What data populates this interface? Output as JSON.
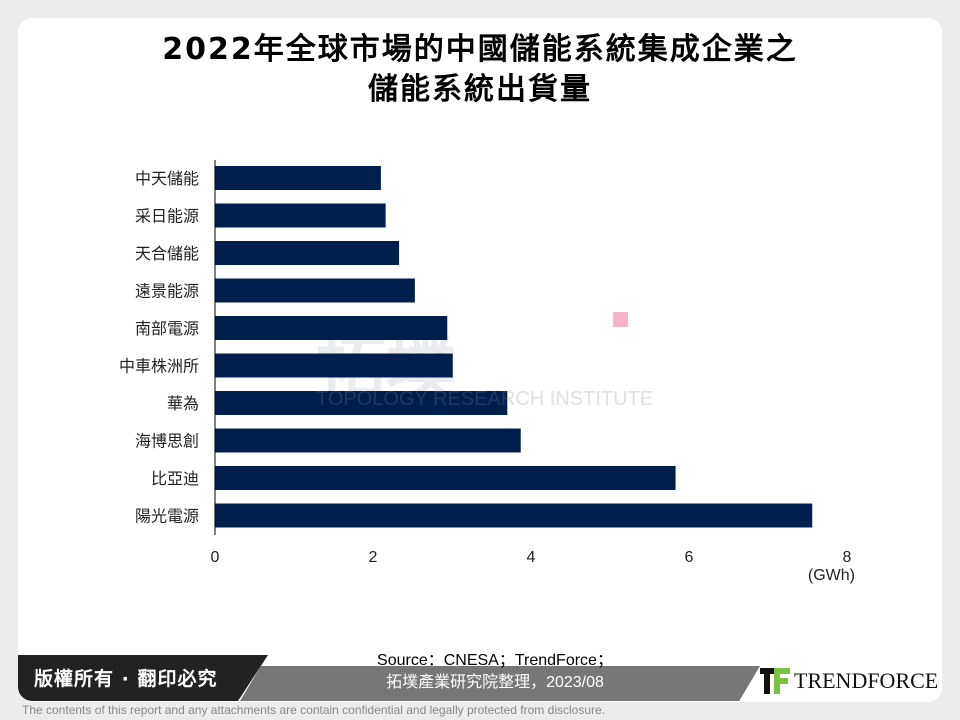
{
  "chart_data": {
    "type": "bar",
    "orientation": "horizontal",
    "title": "2022年全球市場的中國儲能系統集成企業之儲能系統出貨量",
    "title_lines": [
      "2022年全球市場的中國儲能系統集成企業之",
      "儲能系統出貨量"
    ],
    "categories": [
      "中天儲能",
      "采日能源",
      "天合儲能",
      "遠景能源",
      "南部電源",
      "中車株洲所",
      "華為",
      "海博思創",
      "比亞迪",
      "陽光電源"
    ],
    "values": [
      2.1,
      2.16,
      2.33,
      2.53,
      2.94,
      3.01,
      3.7,
      3.87,
      5.83,
      7.56
    ],
    "xlim": [
      0,
      8
    ],
    "xticks": [
      "0",
      "2",
      "4",
      "6",
      "8"
    ],
    "xunit": "(GWh)",
    "bar_color": "#001f4d",
    "grid": false
  },
  "watermark": {
    "cn": "拓墣",
    "en": "TOPOLOGY RESEARCH INSTITUTE"
  },
  "footer": {
    "copyright": "版權所有 · 翻印必究",
    "source_line1": "Source：CNESA；TrendForce；",
    "source_line2": "拓墣產業研究院整理，2023/08",
    "logo": "TRENDFORCE",
    "disclaimer": "The contents of this report and any attachments are contain confidential and legally protected from disclosure."
  }
}
